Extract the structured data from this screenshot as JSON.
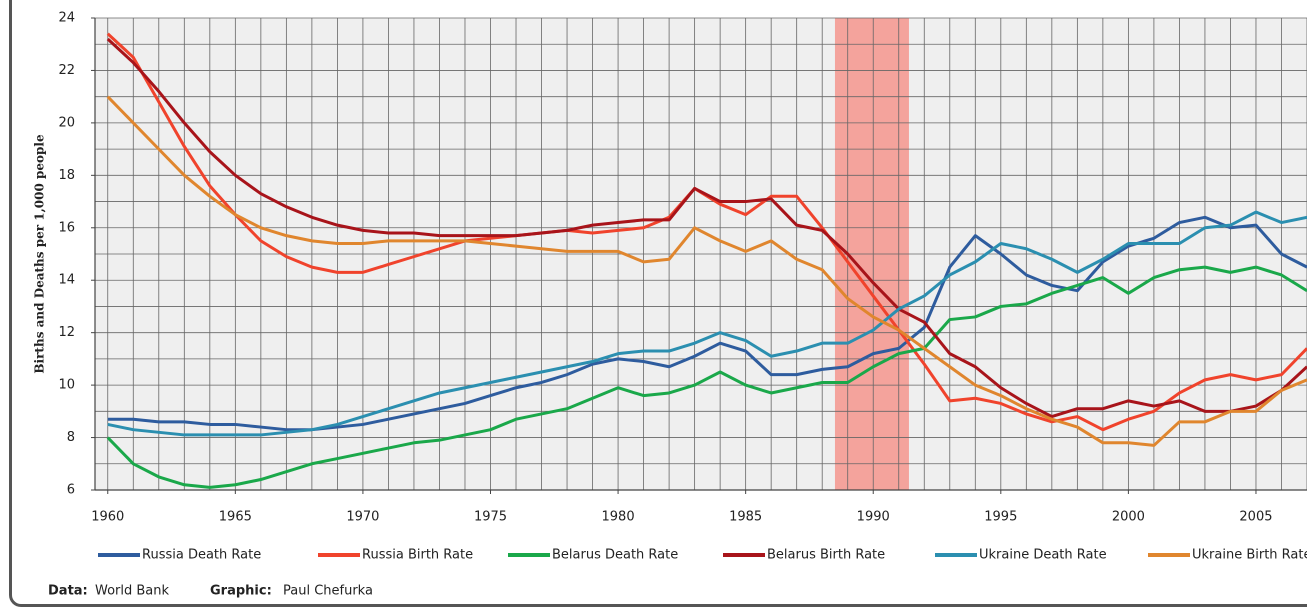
{
  "chart_data": {
    "type": "line",
    "y_label": "Births and Deaths per 1,000 people",
    "xlim": [
      1959.5,
      2007
    ],
    "ylim": [
      6,
      24
    ],
    "xticks": [
      1960,
      1965,
      1970,
      1975,
      1980,
      1985,
      1990,
      1995,
      2000,
      2005
    ],
    "yticks": [
      6,
      8,
      10,
      12,
      14,
      16,
      18,
      20,
      22,
      24
    ],
    "grid": true,
    "grid_step": {
      "x": 1,
      "y": 1
    },
    "highlight": {
      "from": 1988.5,
      "to": 1991.4,
      "color": "#f4a39c"
    },
    "x": [
      1960,
      1961,
      1962,
      1963,
      1964,
      1965,
      1966,
      1967,
      1968,
      1969,
      1970,
      1971,
      1972,
      1973,
      1974,
      1975,
      1976,
      1977,
      1978,
      1979,
      1980,
      1981,
      1982,
      1983,
      1984,
      1985,
      1986,
      1987,
      1988,
      1989,
      1990,
      1991,
      1992,
      1993,
      1994,
      1995,
      1996,
      1997,
      1998,
      1999,
      2000,
      2001,
      2002,
      2003,
      2004,
      2005,
      2006,
      2007
    ],
    "series": [
      {
        "name": "Russia Death Rate",
        "color": "#2e5c9e",
        "values": [
          8.7,
          8.7,
          8.6,
          8.6,
          8.5,
          8.5,
          8.4,
          8.3,
          8.3,
          8.4,
          8.5,
          8.7,
          8.9,
          9.1,
          9.3,
          9.6,
          9.9,
          10.1,
          10.4,
          10.8,
          11.0,
          10.9,
          10.7,
          11.1,
          11.6,
          11.3,
          10.4,
          10.4,
          10.6,
          10.7,
          11.2,
          11.4,
          12.2,
          14.5,
          15.7,
          15.0,
          14.2,
          13.8,
          13.6,
          14.7,
          15.3,
          15.6,
          16.2,
          16.4,
          16.0,
          16.1,
          15.0,
          14.5
        ]
      },
      {
        "name": "Russia Birth Rate",
        "color": "#f0432c",
        "values": [
          23.4,
          22.5,
          20.8,
          19.1,
          17.6,
          16.5,
          15.5,
          14.9,
          14.5,
          14.3,
          14.3,
          14.6,
          14.9,
          15.2,
          15.5,
          15.6,
          15.7,
          15.8,
          15.9,
          15.8,
          15.9,
          16.0,
          16.4,
          17.5,
          16.9,
          16.5,
          17.2,
          17.2,
          16.0,
          14.7,
          13.4,
          12.1,
          10.8,
          9.4,
          9.5,
          9.3,
          8.9,
          8.6,
          8.8,
          8.3,
          8.7,
          9.0,
          9.7,
          10.2,
          10.4,
          10.2,
          10.4,
          11.4
        ]
      },
      {
        "name": "Belarus Death Rate",
        "color": "#1aa84a",
        "values": [
          8.0,
          7.0,
          6.5,
          6.2,
          6.1,
          6.2,
          6.4,
          6.7,
          7.0,
          7.2,
          7.4,
          7.6,
          7.8,
          7.9,
          8.1,
          8.3,
          8.7,
          8.9,
          9.1,
          9.5,
          9.9,
          9.6,
          9.7,
          10.0,
          10.5,
          10.0,
          9.7,
          9.9,
          10.1,
          10.1,
          10.7,
          11.2,
          11.4,
          12.5,
          12.6,
          13.0,
          13.1,
          13.5,
          13.8,
          14.1,
          13.5,
          14.1,
          14.4,
          14.5,
          14.3,
          14.5,
          14.2,
          13.6
        ]
      },
      {
        "name": "Belarus Birth Rate",
        "color": "#a8141a",
        "values": [
          23.2,
          22.3,
          21.2,
          20.0,
          18.9,
          18.0,
          17.3,
          16.8,
          16.4,
          16.1,
          15.9,
          15.8,
          15.8,
          15.7,
          15.7,
          15.7,
          15.7,
          15.8,
          15.9,
          16.1,
          16.2,
          16.3,
          16.3,
          17.5,
          17.0,
          17.0,
          17.1,
          16.1,
          15.9,
          15.0,
          13.9,
          12.9,
          12.4,
          11.2,
          10.7,
          9.9,
          9.3,
          8.8,
          9.1,
          9.1,
          9.4,
          9.2,
          9.4,
          9.0,
          9.0,
          9.2,
          9.8,
          10.7
        ]
      },
      {
        "name": "Ukraine Death Rate",
        "color": "#2b8fb0",
        "values": [
          8.5,
          8.3,
          8.2,
          8.1,
          8.1,
          8.1,
          8.1,
          8.2,
          8.3,
          8.5,
          8.8,
          9.1,
          9.4,
          9.7,
          9.9,
          10.1,
          10.3,
          10.5,
          10.7,
          10.9,
          11.2,
          11.3,
          11.3,
          11.6,
          12.0,
          11.7,
          11.1,
          11.3,
          11.6,
          11.6,
          12.1,
          12.9,
          13.4,
          14.2,
          14.7,
          15.4,
          15.2,
          14.8,
          14.3,
          14.8,
          15.4,
          15.4,
          15.4,
          16.0,
          16.1,
          16.6,
          16.2,
          16.4
        ]
      },
      {
        "name": "Ukraine Birth Rate",
        "color": "#e0862e",
        "values": [
          21.0,
          20.0,
          19.0,
          18.0,
          17.2,
          16.5,
          16.0,
          15.7,
          15.5,
          15.4,
          15.4,
          15.5,
          15.5,
          15.5,
          15.5,
          15.4,
          15.3,
          15.2,
          15.1,
          15.1,
          15.1,
          14.7,
          14.8,
          16.0,
          15.5,
          15.1,
          15.5,
          14.8,
          14.4,
          13.3,
          12.6,
          12.1,
          11.4,
          10.7,
          10.0,
          9.6,
          9.1,
          8.7,
          8.4,
          7.8,
          7.8,
          7.7,
          8.6,
          8.6,
          9.0,
          9.0,
          9.8,
          10.2
        ]
      }
    ],
    "source_label": "Data:",
    "source": "World Bank",
    "credit_label": "Graphic:",
    "credit": "Paul Chefurka"
  }
}
